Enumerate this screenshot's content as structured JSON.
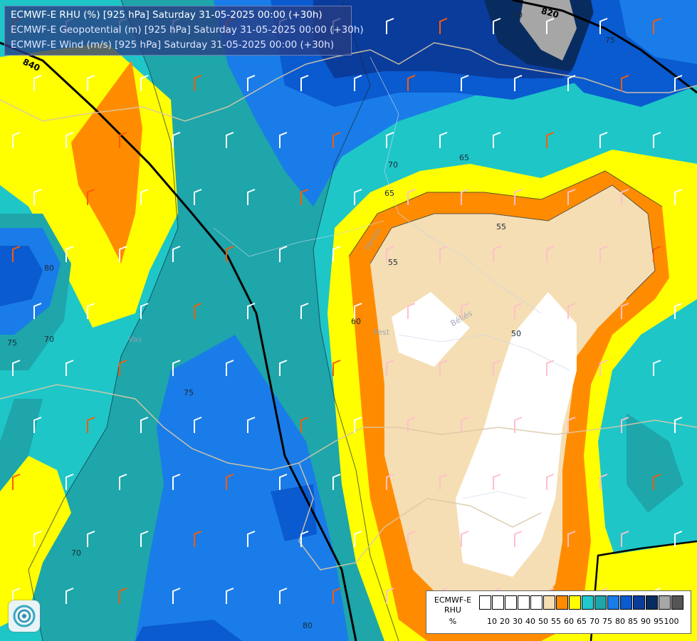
{
  "titles": {
    "line1": "ECMWF-E RHU (%) [925 hPa] Saturday 31-05-2025 00:00 (+30h)",
    "line2": "ECMWF-E Geopotential (m) [925 hPa] Saturday 31-05-2025 00:00 (+30h)",
    "line3": "ECMWF-E Wind (m/s) [925 hPa] Saturday 31-05-2025 00:00 (+30h)"
  },
  "legend": {
    "model": "ECMWF-E",
    "variable": "RHU",
    "unit": "%",
    "swatches": [
      {
        "color": "#ffffff"
      },
      {
        "color": "#ffffff"
      },
      {
        "color": "#ffffff"
      },
      {
        "color": "#ffffff"
      },
      {
        "color": "#ffffff"
      },
      {
        "color": "#f5deb3"
      },
      {
        "color": "#ff8c00"
      },
      {
        "color": "#ffff00"
      },
      {
        "color": "#20c8cc"
      },
      {
        "color": "#1ea6aa"
      },
      {
        "color": "#1a7ce8"
      },
      {
        "color": "#0a5ad0"
      },
      {
        "color": "#0a3c9c"
      },
      {
        "color": "#082c60"
      },
      {
        "color": "#a6a6a6"
      },
      {
        "color": "#555555"
      }
    ],
    "ticks": [
      "10",
      "20",
      "30",
      "40",
      "50",
      "55",
      "60",
      "65",
      "70",
      "75",
      "80",
      "85",
      "90",
      "95",
      "100"
    ]
  },
  "contour_labels": {
    "geopotential": [
      "840",
      "820"
    ],
    "rhu": [
      "90",
      "80",
      "75",
      "70",
      "75",
      "65",
      "70",
      "65",
      "55",
      "55",
      "60",
      "50",
      "75",
      "70",
      "80"
    ]
  },
  "place_labels": [
    "Heves",
    "Pest",
    "Békés",
    "Vas"
  ]
}
